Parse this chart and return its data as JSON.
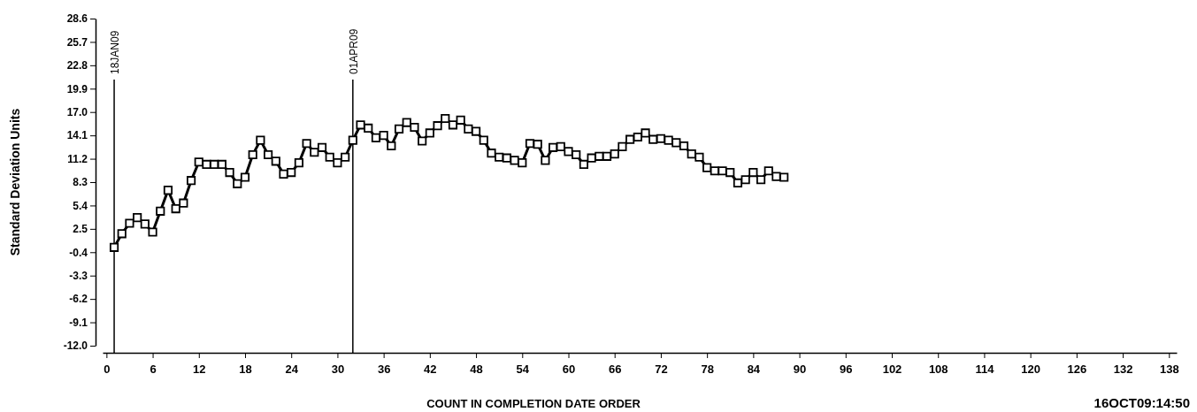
{
  "chart_data": {
    "type": "line",
    "xlabel": "COUNT IN COMPLETION DATE ORDER",
    "ylabel": "Standard Deviation Units",
    "annotations": [
      "16OCT09:14:50"
    ],
    "x": [
      1,
      2,
      3,
      4,
      5,
      6,
      7,
      8,
      9,
      10,
      11,
      12,
      13,
      14,
      15,
      16,
      17,
      18,
      19,
      20,
      21,
      22,
      23,
      24,
      25,
      26,
      27,
      28,
      29,
      30,
      31,
      32,
      33,
      34,
      35,
      36,
      37,
      38,
      39,
      40,
      41,
      42,
      43,
      44,
      45,
      46,
      47,
      48,
      49,
      50,
      51,
      52,
      53,
      54,
      55,
      56,
      57,
      58,
      59,
      60,
      61,
      62,
      63,
      64,
      65,
      66,
      67,
      68,
      69,
      70,
      71,
      72,
      73,
      74,
      75,
      76,
      77,
      78,
      79,
      80,
      81,
      82,
      83,
      84,
      85,
      86,
      87,
      88
    ],
    "series": [
      {
        "color": "#000000",
        "values": [
          0.2,
          1.9,
          3.2,
          3.9,
          3.1,
          2.1,
          4.7,
          7.3,
          5.0,
          5.7,
          8.5,
          10.8,
          10.5,
          10.5,
          10.5,
          9.5,
          8.1,
          8.9,
          11.7,
          13.5,
          11.7,
          10.9,
          9.3,
          9.5,
          10.7,
          13.1,
          12.0,
          12.6,
          11.4,
          10.7,
          11.4,
          13.5,
          15.4,
          15.0,
          13.8,
          14.1,
          12.8,
          14.9,
          15.7,
          15.1,
          13.4,
          14.4,
          15.3,
          16.2,
          15.4,
          16.0,
          14.9,
          14.6,
          13.5,
          11.9,
          11.4,
          11.3,
          11.0,
          10.7,
          13.1,
          13.0,
          11.0,
          12.6,
          12.7,
          12.1,
          11.7,
          10.5,
          11.3,
          11.5,
          11.5,
          11.8,
          12.7,
          13.6,
          13.9,
          14.4,
          13.6,
          13.7,
          13.5,
          13.2,
          12.8,
          11.8,
          11.4,
          10.1,
          9.7,
          9.7,
          9.5,
          8.2,
          8.6,
          9.5,
          8.6,
          9.7,
          9.0,
          8.9
        ]
      }
    ],
    "xlim": [
      -0.5,
      139
    ],
    "xticks": [
      0,
      6,
      12,
      18,
      24,
      30,
      36,
      42,
      48,
      54,
      60,
      66,
      72,
      78,
      84,
      90,
      96,
      102,
      108,
      114,
      120,
      126,
      132,
      138
    ],
    "ylim": [
      -12.0,
      28.6
    ],
    "yticks": [
      {
        "value": -12,
        "label": "-12.0"
      },
      -9.1,
      -6.2,
      -3.3,
      -0.4,
      2.5,
      5.4,
      8.3,
      11.2,
      14.1,
      {
        "value": 17,
        "label": "17.0"
      },
      19.9,
      22.8,
      25.7,
      28.6
    ],
    "ref_lines": [
      {
        "axis": "x",
        "value": 1,
        "label": "18JAN09",
        "color": "#000000"
      },
      {
        "axis": "x",
        "value": 32,
        "label": "01APR09",
        "color": "#000000"
      }
    ],
    "grid": false,
    "marker": "square",
    "line_style": "solid"
  }
}
